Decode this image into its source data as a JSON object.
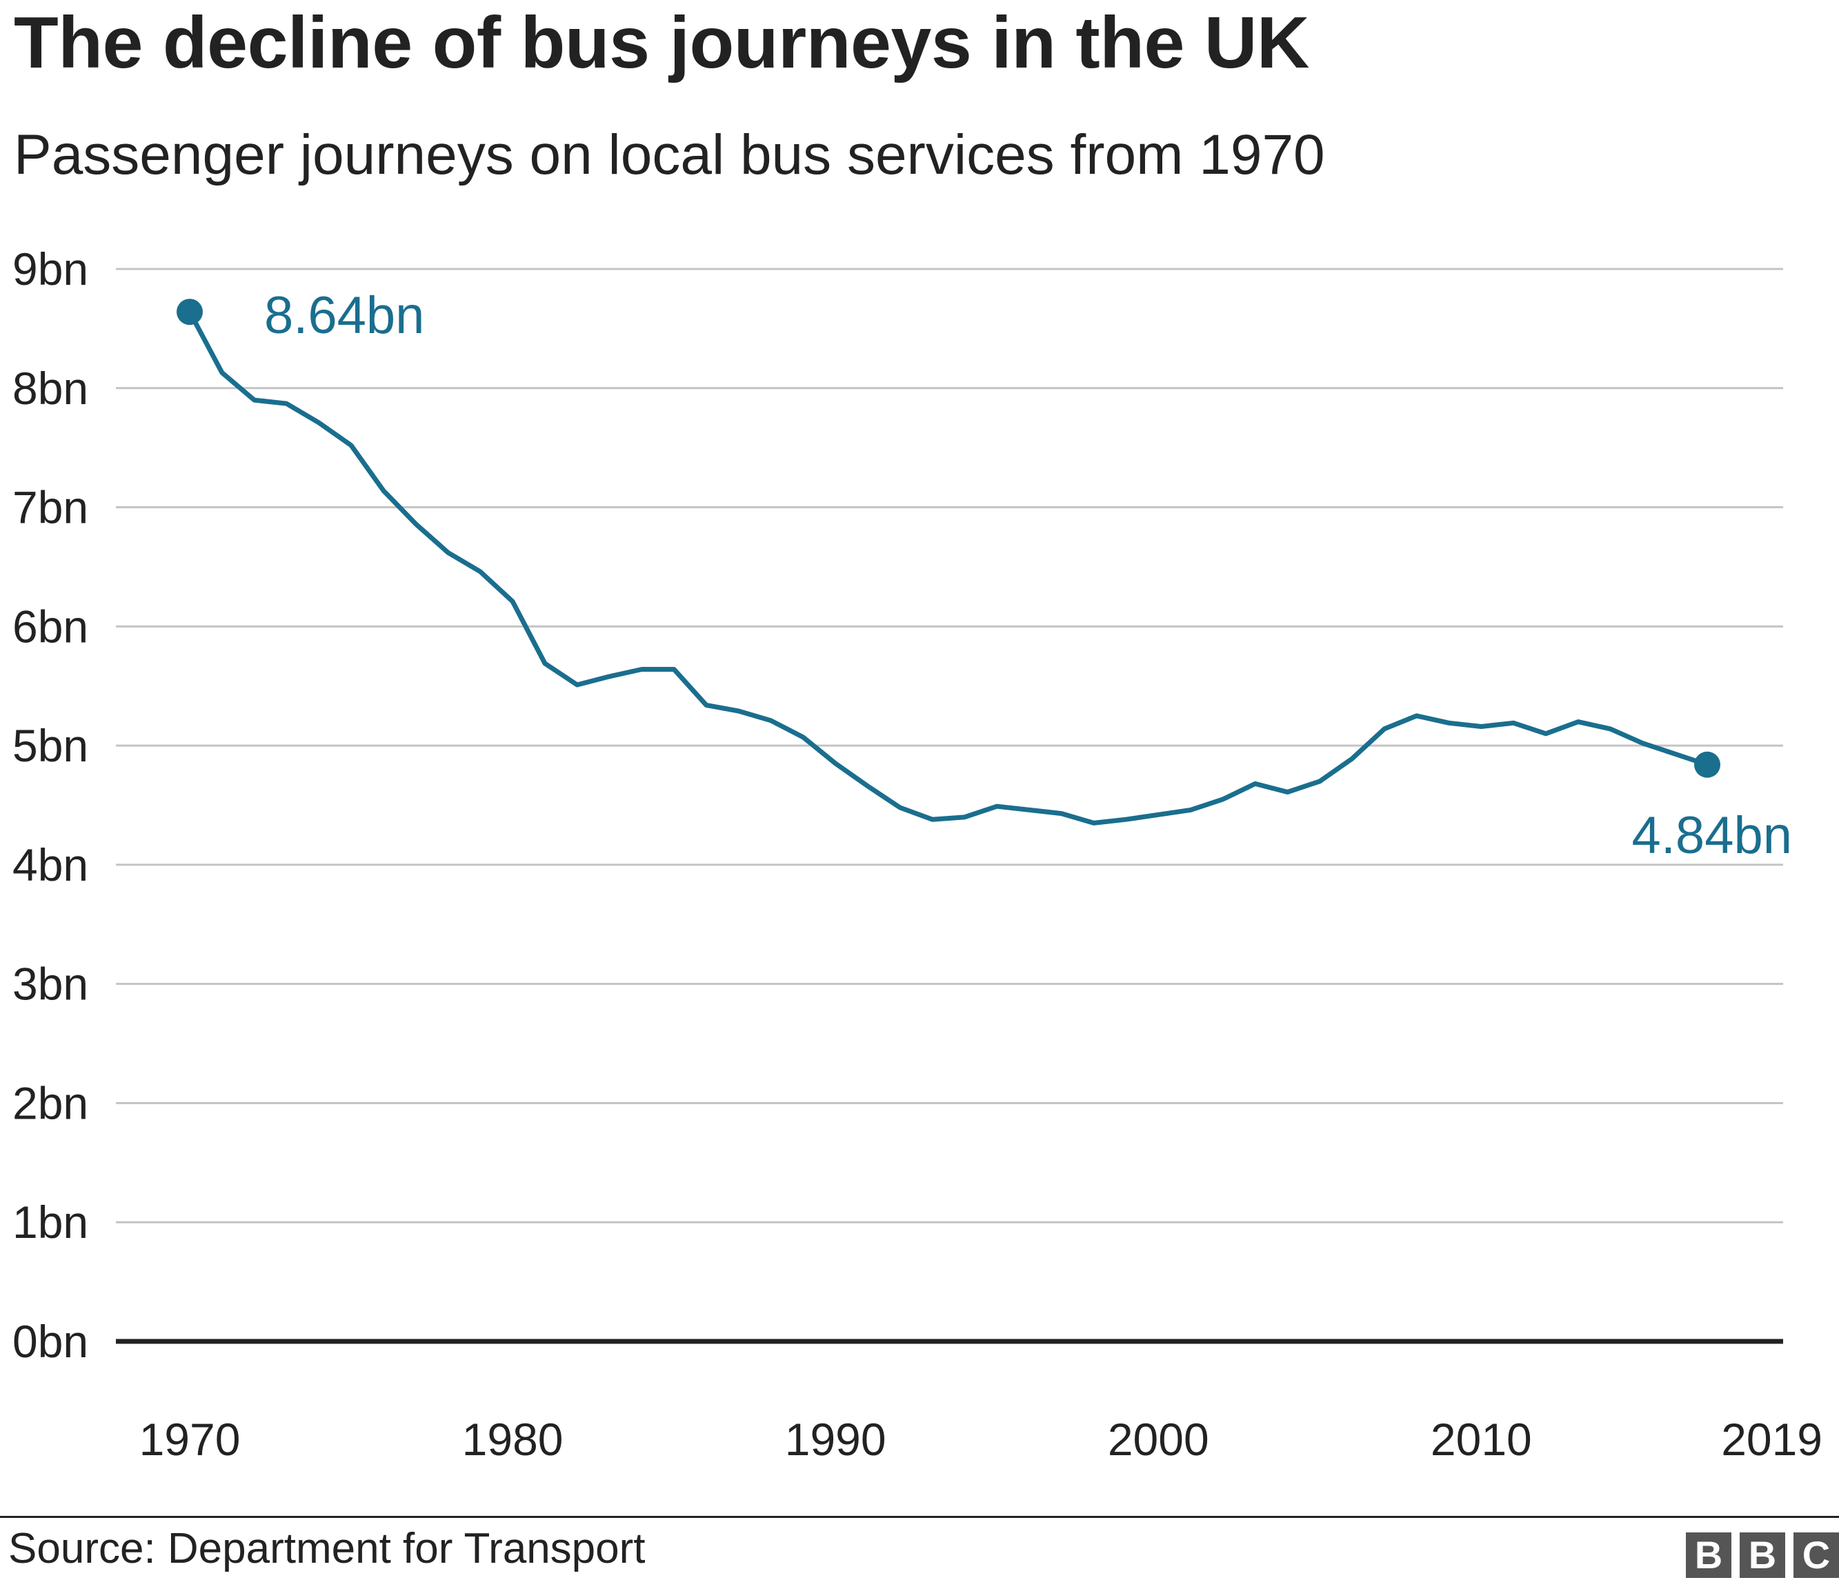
{
  "chart_data": {
    "type": "line",
    "title": "The decline of bus journeys in the UK",
    "subtitle": "Passenger journeys on local bus services from 1970",
    "ylim": [
      0,
      9
    ],
    "y_ticks": [
      "0bn",
      "1bn",
      "2bn",
      "3bn",
      "4bn",
      "5bn",
      "6bn",
      "7bn",
      "8bn",
      "9bn"
    ],
    "x_ticks": [
      "1970",
      "1980",
      "1990",
      "2000",
      "2010",
      "2019"
    ],
    "grid": true,
    "line_color": "#1a6e8e",
    "x": [
      1970,
      1971,
      1972,
      1973,
      1974,
      1975,
      1976,
      1977,
      1978,
      1979,
      1980,
      1981,
      1982,
      1983,
      1984,
      1985,
      1986,
      1987,
      1988,
      1989,
      1990,
      1991,
      1992,
      1993,
      1994,
      1995,
      1996,
      1997,
      1998,
      1999,
      2000,
      2001,
      2002,
      2003,
      2004,
      2005,
      2006,
      2007,
      2008,
      2009,
      2010,
      2011,
      2012,
      2013,
      2014,
      2015,
      2016,
      2017
    ],
    "values": [
      8.64,
      8.13,
      7.9,
      7.87,
      7.71,
      7.52,
      7.14,
      6.86,
      6.62,
      6.46,
      6.21,
      5.69,
      5.51,
      5.58,
      5.64,
      5.64,
      5.34,
      5.29,
      5.21,
      5.07,
      4.85,
      4.66,
      4.48,
      4.38,
      4.4,
      4.49,
      4.46,
      4.43,
      4.35,
      4.38,
      4.42,
      4.46,
      4.55,
      4.68,
      4.61,
      4.7,
      4.89,
      5.14,
      5.25,
      5.19,
      5.16,
      5.19,
      5.1,
      5.2,
      5.14,
      5.02,
      4.93,
      4.84
    ],
    "annotations": [
      {
        "label": "8.64bn",
        "x": 1970,
        "y": 8.64
      },
      {
        "label": "4.84bn",
        "x": 2017,
        "y": 4.84
      }
    ],
    "source": "Source: Department for Transport"
  },
  "logo": [
    "B",
    "B",
    "C"
  ]
}
